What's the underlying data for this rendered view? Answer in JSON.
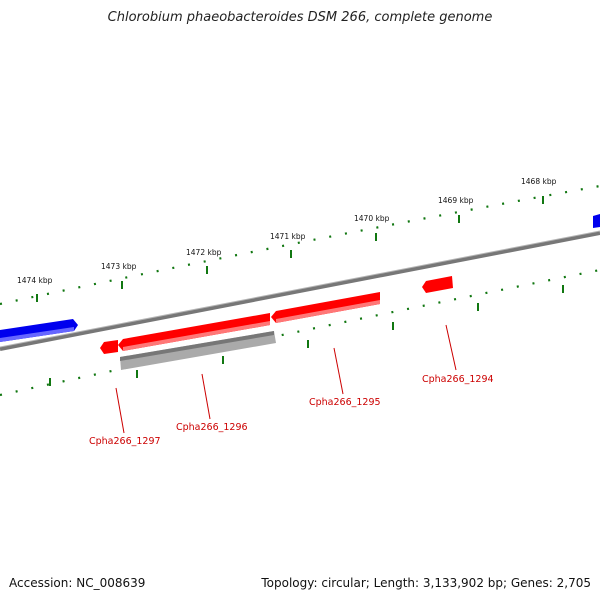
{
  "title": "Chlorobium phaeobacteroides DSM 266, complete genome",
  "footer": {
    "accession": "Accession: NC_008639",
    "stats": "Topology: circular; Length: 3,133,902 bp; Genes: 2,705"
  },
  "kbp_labels": [
    "1474 kbp",
    "1473 kbp",
    "1472 kbp",
    "1471 kbp",
    "1470 kbp",
    "1469 kbp",
    "1468 kbp"
  ],
  "gene_labels": [
    "Cpha266_1297",
    "Cpha266_1296",
    "Cpha266_1295",
    "Cpha266_1294"
  ],
  "colors": {
    "forward_gene": "#ff0000",
    "other_gene": "#0000ee",
    "pseudogene": "#aaaaaa",
    "backbone": "#777777",
    "ticks": "#117711",
    "label": "#cc0000"
  }
}
